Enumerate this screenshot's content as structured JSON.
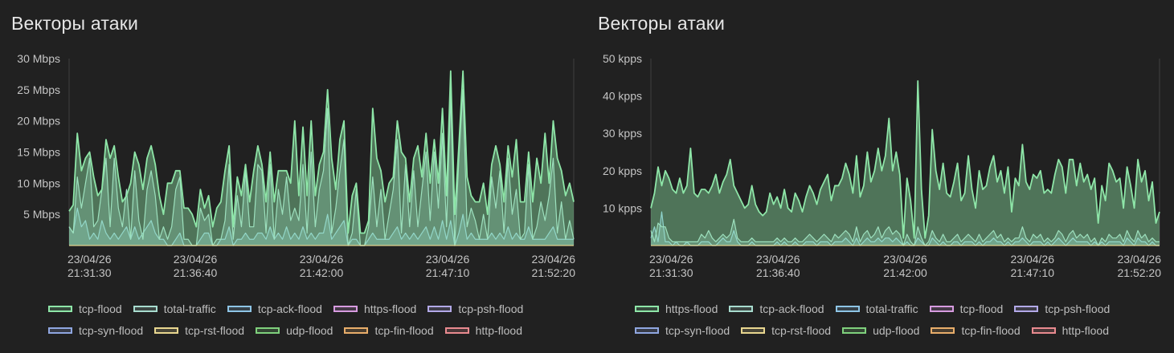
{
  "chart_data": [
    {
      "type": "area",
      "title": "Векторы атаки",
      "unit": "Mbps",
      "y_ticks": [
        "5 Mbps",
        "10 Mbps",
        "15 Mbps",
        "20 Mbps",
        "25 Mbps",
        "30 Mbps"
      ],
      "ylim": [
        0,
        30
      ],
      "x_ticks": [
        {
          "date": "23/04/26",
          "time": "21:31:30"
        },
        {
          "date": "23/04/26",
          "time": "21:36:40"
        },
        {
          "date": "23/04/26",
          "time": "21:42:00"
        },
        {
          "date": "23/04/26",
          "time": "21:47:10"
        },
        {
          "date": "23/04/26",
          "time": "21:52:20"
        }
      ],
      "legend": [
        {
          "label": "tcp-flood",
          "color": "#8ee6a8"
        },
        {
          "label": "total-traffic",
          "color": "#a8dccf"
        },
        {
          "label": "tcp-ack-flood",
          "color": "#8ec5e6"
        },
        {
          "label": "https-flood",
          "color": "#d79be0"
        },
        {
          "label": "tcp-psh-flood",
          "color": "#b3a9e8"
        },
        {
          "label": "tcp-syn-flood",
          "color": "#8fa6e0"
        },
        {
          "label": "tcp-rst-flood",
          "color": "#e8d68f"
        },
        {
          "label": "udp-flood",
          "color": "#7fd07c"
        },
        {
          "label": "tcp-fin-flood",
          "color": "#e8ad6a"
        },
        {
          "label": "http-flood",
          "color": "#e88a8f"
        }
      ],
      "series": [
        {
          "name": "tcp-flood",
          "values": [
            5.5,
            6.5,
            18,
            12,
            14,
            15,
            11,
            8,
            9,
            17,
            14,
            16,
            11,
            7,
            8,
            10,
            15,
            13,
            9,
            14,
            16,
            13,
            8,
            5,
            10,
            10,
            12,
            12,
            6,
            6,
            5,
            3,
            9,
            6,
            8,
            3,
            6,
            7,
            12,
            16,
            3,
            11,
            8,
            13,
            7,
            12,
            16,
            13,
            7,
            15,
            7,
            12,
            12,
            12,
            10,
            20,
            8,
            19,
            8,
            20,
            8,
            13,
            15,
            25,
            14,
            9,
            17,
            20,
            2,
            8,
            10,
            2,
            2,
            4,
            22,
            14,
            12,
            7,
            10,
            11,
            20,
            15,
            14,
            7,
            14,
            16,
            11,
            18,
            10,
            17,
            10,
            22,
            8,
            28,
            5,
            16,
            28,
            11,
            8,
            7,
            7,
            10,
            5,
            13,
            16,
            13,
            7,
            16,
            11,
            17,
            7,
            7,
            15,
            7,
            14,
            10,
            18,
            10,
            20,
            14,
            12,
            8,
            10,
            7
          ],
          "color": "#8ee6a8"
        },
        {
          "name": "total-traffic",
          "values": [
            3,
            2,
            11,
            6,
            10,
            14,
            3,
            4,
            9,
            14,
            3,
            14,
            6,
            3,
            9,
            1,
            12,
            4,
            1,
            9,
            12,
            8,
            1,
            3,
            1,
            3,
            9,
            11,
            1,
            1,
            0,
            0,
            6,
            4,
            5,
            0,
            1,
            1,
            4,
            13,
            1,
            8,
            3,
            12,
            3,
            3,
            13,
            12,
            2,
            13,
            1,
            9,
            5,
            11,
            4,
            6,
            4,
            13,
            2,
            15,
            3,
            9,
            12,
            22,
            2,
            6,
            12,
            17,
            0,
            2,
            9,
            0,
            0,
            3,
            11,
            3,
            9,
            1,
            5,
            9,
            17,
            2,
            13,
            3,
            12,
            3,
            9,
            15,
            4,
            15,
            6,
            18,
            3,
            24,
            0,
            14,
            25,
            3,
            6,
            4,
            1,
            5,
            1,
            11,
            6,
            12,
            2,
            14,
            5,
            9,
            1,
            2,
            13,
            1,
            3,
            7,
            4,
            8,
            14,
            2,
            7,
            1,
            4,
            1
          ],
          "color": "#a8dccf"
        },
        {
          "name": "tcp-ack-flood",
          "values": [
            3,
            2,
            6,
            3,
            4,
            1,
            2,
            1,
            4,
            2,
            1,
            2,
            1,
            2,
            3,
            1,
            3,
            1,
            2,
            3,
            4,
            2,
            1,
            1,
            0,
            0,
            1,
            2,
            0,
            0,
            0,
            0,
            1,
            2,
            2,
            0,
            0,
            1,
            1,
            3,
            0,
            1,
            1,
            2,
            1,
            1,
            2,
            2,
            1,
            3,
            1,
            2,
            1,
            3,
            1,
            2,
            1,
            3,
            1,
            2,
            1,
            2,
            2,
            5,
            1,
            2,
            3,
            4,
            0,
            1,
            1,
            0,
            0,
            1,
            2,
            1,
            1,
            1,
            1,
            2,
            3,
            1,
            2,
            1,
            2,
            1,
            2,
            3,
            1,
            3,
            1,
            4,
            1,
            4,
            0,
            2,
            5,
            1,
            2,
            1,
            1,
            1,
            1,
            2,
            1,
            2,
            1,
            3,
            1,
            2,
            1,
            1,
            3,
            1,
            1,
            1,
            1,
            2,
            3,
            1,
            1,
            1,
            1,
            1
          ],
          "color": "#8ec5e6"
        }
      ]
    },
    {
      "type": "area",
      "title": "Векторы атаки",
      "unit": "kpps",
      "y_ticks": [
        "10 kpps",
        "20 kpps",
        "30 kpps",
        "40 kpps",
        "50 kpps"
      ],
      "ylim": [
        0,
        50
      ],
      "x_ticks": [
        {
          "date": "23/04/26",
          "time": "21:31:30"
        },
        {
          "date": "23/04/26",
          "time": "21:36:40"
        },
        {
          "date": "23/04/26",
          "time": "21:42:00"
        },
        {
          "date": "23/04/26",
          "time": "21:47:10"
        },
        {
          "date": "23/04/26",
          "time": "21:52:20"
        }
      ],
      "legend": [
        {
          "label": "https-flood",
          "color": "#8ee6a8"
        },
        {
          "label": "tcp-ack-flood",
          "color": "#a8dccf"
        },
        {
          "label": "total-traffic",
          "color": "#8ec5e6"
        },
        {
          "label": "tcp-flood",
          "color": "#d79be0"
        },
        {
          "label": "tcp-psh-flood",
          "color": "#b3a9e8"
        },
        {
          "label": "tcp-syn-flood",
          "color": "#8fa6e0"
        },
        {
          "label": "tcp-rst-flood",
          "color": "#e8d68f"
        },
        {
          "label": "udp-flood",
          "color": "#7fd07c"
        },
        {
          "label": "tcp-fin-flood",
          "color": "#e8ad6a"
        },
        {
          "label": "http-flood",
          "color": "#e88a8f"
        }
      ],
      "series": [
        {
          "name": "https-flood",
          "values": [
            10,
            14,
            21,
            16,
            20,
            18,
            15,
            14,
            18,
            14,
            16,
            26,
            14,
            13,
            15,
            15,
            14,
            16,
            19,
            14,
            17,
            19,
            23,
            16,
            14,
            12,
            10,
            11,
            16,
            11,
            9,
            8,
            9,
            14,
            11,
            13,
            10,
            15,
            10,
            9,
            14,
            12,
            9,
            13,
            16,
            14,
            11,
            15,
            17,
            19,
            12,
            16,
            16,
            18,
            22,
            19,
            14,
            24,
            13,
            16,
            25,
            17,
            20,
            26,
            20,
            24,
            34,
            20,
            25,
            19,
            2,
            18,
            12,
            2,
            44,
            15,
            2,
            8,
            31,
            20,
            15,
            22,
            14,
            13,
            17,
            22,
            12,
            14,
            24,
            15,
            10,
            20,
            15,
            16,
            21,
            24,
            17,
            20,
            14,
            21,
            9,
            18,
            16,
            27,
            17,
            15,
            19,
            18,
            20,
            14,
            15,
            14,
            19,
            23,
            21,
            14,
            23,
            23,
            16,
            22,
            17,
            19,
            15,
            18,
            6,
            16,
            12,
            22,
            20,
            17,
            18,
            10,
            21,
            16,
            10,
            23,
            17,
            20,
            12,
            17,
            6,
            9
          ],
          "color": "#8ee6a8"
        },
        {
          "name": "tcp-ack-flood",
          "values": [
            4,
            1,
            6,
            5,
            5,
            2,
            1,
            1,
            1,
            1,
            1,
            1,
            1,
            1,
            3,
            2,
            4,
            2,
            1,
            2,
            3,
            2,
            3,
            7,
            2,
            1,
            1,
            1,
            2,
            1,
            1,
            1,
            1,
            1,
            1,
            2,
            1,
            2,
            1,
            1,
            2,
            1,
            1,
            2,
            3,
            2,
            1,
            2,
            3,
            2,
            1,
            3,
            2,
            3,
            4,
            3,
            1,
            5,
            1,
            3,
            4,
            2,
            3,
            5,
            2,
            4,
            5,
            3,
            4,
            3,
            0,
            3,
            1,
            0,
            5,
            2,
            0,
            1,
            4,
            2,
            1,
            3,
            1,
            1,
            2,
            3,
            1,
            2,
            3,
            2,
            1,
            3,
            1,
            2,
            3,
            4,
            2,
            3,
            1,
            2,
            1,
            2,
            2,
            5,
            2,
            1,
            3,
            2,
            3,
            1,
            2,
            1,
            2,
            4,
            3,
            1,
            3,
            4,
            2,
            3,
            2,
            3,
            1,
            2,
            0,
            2,
            1,
            3,
            2,
            2,
            3,
            1,
            4,
            2,
            1,
            4,
            2,
            3,
            1,
            2,
            1,
            1
          ],
          "color": "#a8dccf"
        },
        {
          "name": "total-traffic",
          "values": [
            2,
            5,
            1,
            9,
            1,
            1,
            0,
            1,
            0,
            0,
            1,
            0,
            0,
            0,
            1,
            1,
            1,
            0,
            0,
            1,
            2,
            1,
            1,
            4,
            1,
            0,
            0,
            0,
            1,
            0,
            0,
            0,
            0,
            0,
            0,
            1,
            0,
            1,
            0,
            0,
            1,
            0,
            0,
            1,
            1,
            1,
            0,
            1,
            1,
            1,
            0,
            1,
            1,
            1,
            2,
            1,
            0,
            2,
            0,
            1,
            2,
            1,
            1,
            2,
            1,
            2,
            2,
            1,
            2,
            1,
            0,
            1,
            0,
            0,
            2,
            1,
            0,
            0,
            2,
            1,
            0,
            1,
            0,
            0,
            1,
            1,
            0,
            1,
            1,
            1,
            0,
            1,
            0,
            1,
            1,
            2,
            1,
            1,
            0,
            1,
            0,
            1,
            1,
            2,
            1,
            0,
            1,
            1,
            1,
            0,
            1,
            0,
            1,
            2,
            1,
            0,
            1,
            2,
            1,
            1,
            1,
            1,
            0,
            1,
            0,
            1,
            0,
            1,
            1,
            1,
            1,
            0,
            2,
            1,
            0,
            2,
            1,
            1,
            0,
            1,
            0,
            0
          ],
          "color": "#8ec5e6"
        }
      ]
    }
  ]
}
